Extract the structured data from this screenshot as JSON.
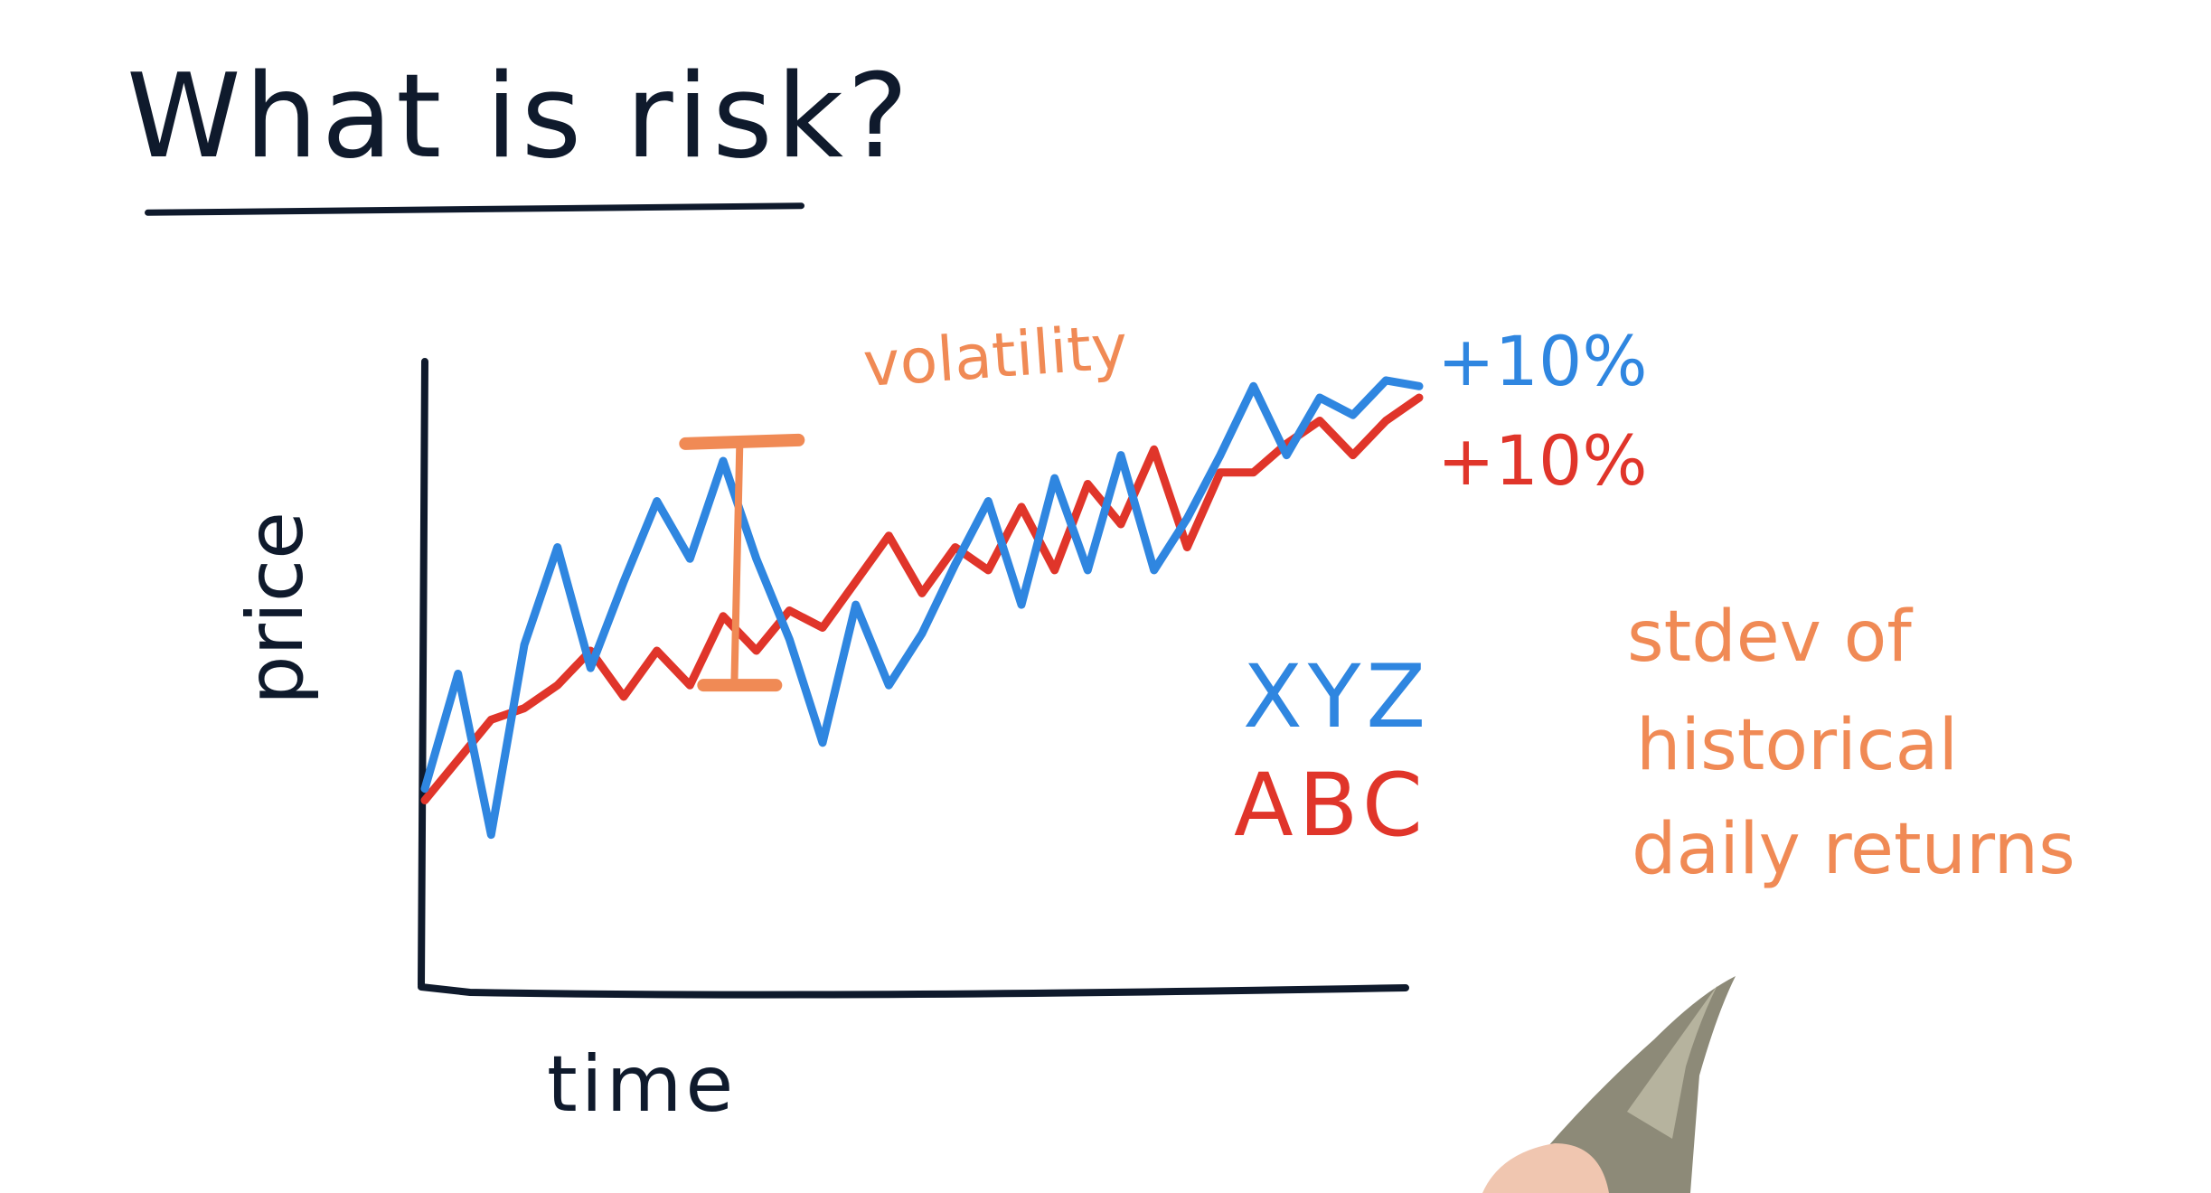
{
  "title": "What is risk?",
  "annotations": {
    "volatility": "volatility",
    "xyz_return": "+10%",
    "abc_return": "+10%",
    "note_lines": [
      "stdev of",
      "historical",
      "daily returns"
    ]
  },
  "colors": {
    "ink": "#0f1a2c",
    "xyz": "#2f86e0",
    "abc": "#e0352a",
    "annotation": "#f08a55"
  },
  "chart_data": {
    "type": "line",
    "xlabel": "time",
    "ylabel": "price",
    "x": [
      0,
      1,
      2,
      3,
      4,
      5,
      6,
      7,
      8,
      9,
      10,
      11,
      12,
      13,
      14,
      15,
      16,
      17,
      18,
      19,
      20,
      21,
      22,
      23,
      24,
      25,
      26,
      27,
      28,
      29,
      30
    ],
    "series": [
      {
        "name": "XYZ",
        "color": "#2f86e0",
        "values": [
          20,
          40,
          12,
          45,
          62,
          41,
          56,
          70,
          60,
          77,
          60,
          46,
          28,
          52,
          38,
          47,
          59,
          70,
          52,
          74,
          58,
          78,
          58,
          67,
          78,
          90,
          78,
          88,
          85,
          91,
          90
        ]
      },
      {
        "name": "ABC",
        "color": "#e0352a",
        "values": [
          18,
          25,
          32,
          34,
          38,
          44,
          36,
          44,
          38,
          50,
          44,
          51,
          48,
          56,
          64,
          54,
          62,
          58,
          69,
          58,
          73,
          66,
          79,
          62,
          75,
          75,
          80,
          84,
          78,
          84,
          88
        ]
      }
    ],
    "volatility_bar": {
      "x": 9.5,
      "low": 38,
      "high": 80
    },
    "ylim": [
      0,
      110
    ],
    "grid": false
  }
}
